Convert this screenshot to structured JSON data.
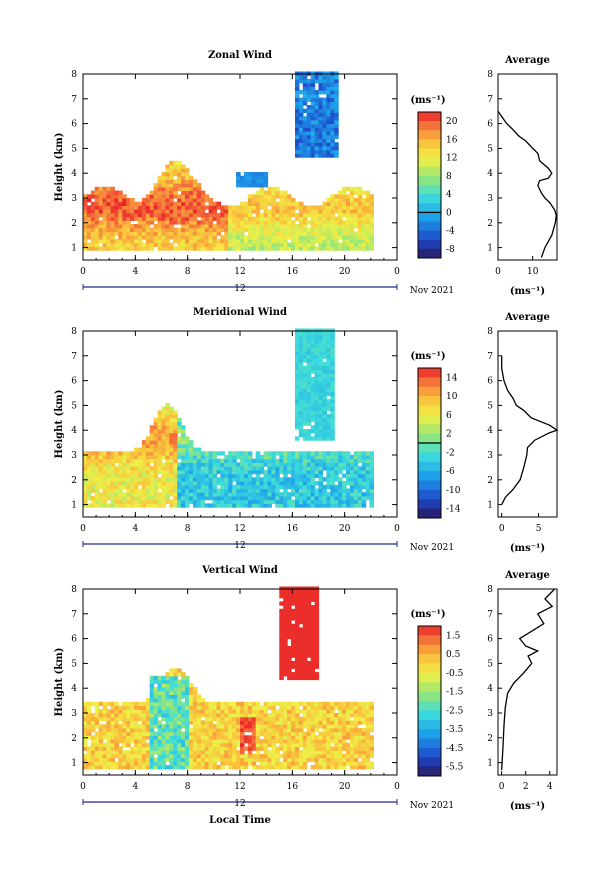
{
  "chart_data": [
    {
      "type": "heatmap",
      "title": "Zonal Wind",
      "ylabel": "Height (km)",
      "xlim": [
        0,
        24
      ],
      "ylim": [
        0.5,
        8
      ],
      "x_ticks": [
        "0",
        "4",
        "8",
        "12",
        "16",
        "20",
        "0"
      ],
      "y_ticks": [
        "1",
        "2",
        "3",
        "4",
        "5",
        "6",
        "7",
        "8"
      ],
      "date_label": "Nov 2021",
      "day_label": "12",
      "colorbar": {
        "unit": "(ms⁻¹)",
        "ticks": [
          "20",
          "16",
          "12",
          "8",
          "4",
          "0",
          "-4",
          "-8"
        ],
        "range": [
          -10,
          22
        ]
      },
      "zero_contour": true,
      "average_profile": {
        "title": "Average",
        "xlabel": "(ms⁻¹)",
        "x_ticks": [
          "0",
          "10"
        ],
        "xlim": [
          0,
          17
        ],
        "heights": [
          0.6,
          1.0,
          1.5,
          2.0,
          2.3,
          2.5,
          2.8,
          3.0,
          3.2,
          3.5,
          3.7,
          3.8,
          4.0,
          4.2,
          4.5,
          4.8,
          5.0,
          5.3,
          5.5,
          5.8,
          6.0,
          6.3,
          6.5
        ],
        "values": [
          12.5,
          13.5,
          15.5,
          16.5,
          16.8,
          16.4,
          15.0,
          13.5,
          12.5,
          11.5,
          12.0,
          14.5,
          15.5,
          14.5,
          12.0,
          11.5,
          10.0,
          8.0,
          6.0,
          4.0,
          2.5,
          1.0,
          0.0
        ]
      }
    },
    {
      "type": "heatmap",
      "title": "Meridional Wind",
      "ylabel": "Height (km)",
      "xlim": [
        0,
        24
      ],
      "ylim": [
        0.5,
        8
      ],
      "x_ticks": [
        "0",
        "4",
        "8",
        "12",
        "16",
        "20",
        "0"
      ],
      "y_ticks": [
        "1",
        "2",
        "3",
        "4",
        "5",
        "6",
        "7",
        "8"
      ],
      "date_label": "Nov 2021",
      "day_label": "12",
      "colorbar": {
        "unit": "(ms⁻¹)",
        "ticks": [
          "14",
          "10",
          "6",
          "2",
          "-2",
          "-6",
          "-10",
          "-14"
        ],
        "range": [
          -16,
          16
        ]
      },
      "zero_contour": true,
      "average_profile": {
        "title": "Average",
        "xlabel": "(ms⁻¹)",
        "x_ticks": [
          "0",
          "5"
        ],
        "xlim": [
          -0.5,
          7.5
        ],
        "heights": [
          1.0,
          1.3,
          1.6,
          2.0,
          2.5,
          3.0,
          3.3,
          3.6,
          3.9,
          4.0,
          4.2,
          4.5,
          4.8,
          5.0,
          5.3,
          5.6,
          6.0,
          6.5,
          7.0
        ],
        "values": [
          0.0,
          0.5,
          1.5,
          2.5,
          3.0,
          3.4,
          3.5,
          4.5,
          6.5,
          7.5,
          6.5,
          4.0,
          3.0,
          2.0,
          1.5,
          0.8,
          0.3,
          0.0,
          0.0
        ]
      }
    },
    {
      "type": "heatmap",
      "title": "Vertical Wind",
      "ylabel": "Height (km)",
      "xlabel": "Local Time",
      "xlim": [
        0,
        24
      ],
      "ylim": [
        0.5,
        8
      ],
      "x_ticks": [
        "0",
        "4",
        "8",
        "12",
        "16",
        "20",
        "0"
      ],
      "y_ticks": [
        "1",
        "2",
        "3",
        "4",
        "5",
        "6",
        "7",
        "8"
      ],
      "date_label": "Nov 2021",
      "day_label": "12",
      "colorbar": {
        "unit": "(ms⁻¹)",
        "ticks": [
          "1.5",
          "0.5",
          "-0.5",
          "-1.5",
          "-2.5",
          "-3.5",
          "-4.5",
          "-5.5"
        ],
        "range": [
          -6.0,
          2.0
        ]
      },
      "zero_contour": false,
      "average_profile": {
        "title": "Average",
        "xlabel": "(ms⁻¹)",
        "x_ticks": [
          "0",
          "2",
          "4"
        ],
        "xlim": [
          -0.3,
          4.6
        ],
        "heights": [
          0.7,
          1.5,
          2.5,
          3.2,
          3.8,
          4.2,
          4.6,
          5.0,
          5.3,
          5.5,
          5.7,
          6.0,
          6.3,
          6.6,
          7.0,
          7.3,
          7.6,
          8.0
        ],
        "values": [
          0.0,
          0.1,
          0.2,
          0.3,
          0.5,
          1.0,
          1.8,
          2.5,
          2.2,
          3.0,
          2.0,
          1.5,
          2.5,
          3.5,
          3.0,
          4.2,
          3.6,
          4.4
        ]
      }
    }
  ]
}
